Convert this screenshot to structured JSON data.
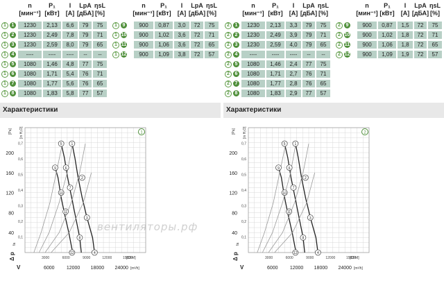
{
  "table_header": {
    "n": "n",
    "n_unit": "[мин⁻¹]",
    "p1": "P₁",
    "p1_unit": "[кВт]",
    "i": "I",
    "i_unit": "[A]",
    "lpa": "Lp",
    "lpa_sub": "A",
    "lpa_unit": "[дБА]",
    "eta": "η",
    "eta_sub": "sL",
    "eta_unit": "[%]"
  },
  "section_title": "Характеристики",
  "watermark": "вентиляторы.рф",
  "panels": [
    {
      "id": "1",
      "rows_left": [
        {
          "a": "1",
          "b": "1",
          "n": "1230",
          "p1": "2,13",
          "i": "6,6",
          "lpa": "79",
          "eta": "75"
        },
        {
          "a": "1",
          "b": "2",
          "n": "1230",
          "p1": "2,49",
          "i": "7,8",
          "lpa": "79",
          "eta": "71"
        },
        {
          "a": "1",
          "b": "3",
          "n": "1230",
          "p1": "2,59",
          "i": "8,0",
          "lpa": "79",
          "eta": "65"
        },
        {
          "a": "1",
          "b": "4",
          "n": "----",
          "p1": "----",
          "i": "----",
          "lpa": "--",
          "eta": "--"
        },
        {
          "a": "1",
          "b": "5",
          "n": "1080",
          "p1": "1,46",
          "i": "4,8",
          "lpa": "77",
          "eta": "75"
        },
        {
          "a": "1",
          "b": "6",
          "n": "1080",
          "p1": "1,71",
          "i": "5,4",
          "lpa": "76",
          "eta": "71"
        },
        {
          "a": "1",
          "b": "7",
          "n": "1080",
          "p1": "1,77",
          "i": "5,6",
          "lpa": "76",
          "eta": "65"
        },
        {
          "a": "1",
          "b": "8",
          "n": "1080",
          "p1": "1,83",
          "i": "5,8",
          "lpa": "77",
          "eta": "57"
        }
      ],
      "rows_right": [
        {
          "a": "1",
          "b": "9",
          "n": "900",
          "p1": "0,87",
          "i": "3,0",
          "lpa": "72",
          "eta": "75"
        },
        {
          "a": "1",
          "b": "10",
          "n": "900",
          "p1": "1,02",
          "i": "3,6",
          "lpa": "72",
          "eta": "71"
        },
        {
          "a": "1",
          "b": "11",
          "n": "900",
          "p1": "1,06",
          "i": "3,6",
          "lpa": "72",
          "eta": "65"
        },
        {
          "a": "1",
          "b": "12",
          "n": "900",
          "p1": "1,09",
          "i": "3,8",
          "lpa": "72",
          "eta": "57"
        }
      ]
    },
    {
      "id": "2",
      "rows_left": [
        {
          "a": "2",
          "b": "1",
          "n": "1230",
          "p1": "2,13",
          "i": "3,3",
          "lpa": "79",
          "eta": "75"
        },
        {
          "a": "2",
          "b": "2",
          "n": "1230",
          "p1": "2,49",
          "i": "3,9",
          "lpa": "79",
          "eta": "71"
        },
        {
          "a": "2",
          "b": "3",
          "n": "1230",
          "p1": "2,59",
          "i": "4,0",
          "lpa": "79",
          "eta": "65"
        },
        {
          "a": "2",
          "b": "4",
          "n": "----",
          "p1": "----",
          "i": "----",
          "lpa": "--",
          "eta": "--"
        },
        {
          "a": "2",
          "b": "5",
          "n": "1080",
          "p1": "1,46",
          "i": "2,4",
          "lpa": "77",
          "eta": "75"
        },
        {
          "a": "2",
          "b": "6",
          "n": "1080",
          "p1": "1,71",
          "i": "2,7",
          "lpa": "76",
          "eta": "71"
        },
        {
          "a": "2",
          "b": "7",
          "n": "1080",
          "p1": "1,77",
          "i": "2,8",
          "lpa": "76",
          "eta": "65"
        },
        {
          "a": "2",
          "b": "8",
          "n": "1080",
          "p1": "1,83",
          "i": "2,9",
          "lpa": "77",
          "eta": "57"
        }
      ],
      "rows_right": [
        {
          "a": "2",
          "b": "9",
          "n": "900",
          "p1": "0,87",
          "i": "1,5",
          "lpa": "72",
          "eta": "75"
        },
        {
          "a": "2",
          "b": "10",
          "n": "900",
          "p1": "1,02",
          "i": "1,8",
          "lpa": "72",
          "eta": "71"
        },
        {
          "a": "2",
          "b": "11",
          "n": "900",
          "p1": "1,06",
          "i": "1,8",
          "lpa": "72",
          "eta": "65"
        },
        {
          "a": "2",
          "b": "12",
          "n": "900",
          "p1": "1,09",
          "i": "1,9",
          "lpa": "72",
          "eta": "57"
        }
      ]
    }
  ],
  "chart_data": [
    {
      "type": "line",
      "badge": "1",
      "ylabel_unit": "[Pa]",
      "ylabel_alt_unit": "[in H₂O]",
      "ylabel_symbol": "Δ p",
      "ylabel_sub": "fa",
      "xlabel_symbol": "V",
      "xlabel_unit": "[m³/h]",
      "xlabel_alt_unit": "[CFM]",
      "x_ticks": [
        6000,
        12000,
        18000,
        24000
      ],
      "x_alt_ticks": [
        3000,
        6000,
        9000,
        12000,
        15000
      ],
      "y_ticks": [
        40,
        80,
        120,
        160,
        200
      ],
      "y_alt_ticks": [
        "0,1",
        "0,2",
        "0,3",
        "0,4",
        "0,5",
        "0,6",
        "0,7"
      ],
      "xlim": [
        0,
        30000
      ],
      "ylim": [
        0,
        250
      ],
      "series": [
        {
          "name": "",
          "points": [
            [
              11700,
              218
            ],
            [
              12400,
              190
            ],
            [
              13200,
              150
            ],
            [
              14200,
              110
            ],
            [
              15400,
              70
            ],
            [
              16800,
              30
            ],
            [
              17300,
              0
            ]
          ]
        },
        {
          "name": "",
          "points": [
            [
              9000,
              218
            ],
            [
              9800,
              190
            ],
            [
              10600,
              150
            ],
            [
              11600,
              110
            ],
            [
              12600,
              70
            ],
            [
              13600,
              30
            ],
            [
              14000,
              0
            ]
          ]
        },
        {
          "name": "",
          "points": [
            [
              7500,
              170
            ],
            [
              8200,
              150
            ],
            [
              9000,
              110
            ],
            [
              9900,
              75
            ],
            [
              10900,
              40
            ],
            [
              11600,
              10
            ],
            [
              11900,
              0
            ]
          ]
        },
        {
          "name": "",
          "points": [
            [
              2200,
              0
            ],
            [
              4000,
              40
            ],
            [
              6200,
              100
            ],
            [
              7800,
              160
            ],
            [
              9300,
              218
            ]
          ]
        },
        {
          "name": "",
          "points": [
            [
              3500,
              0
            ],
            [
              6000,
              40
            ],
            [
              8500,
              100
            ],
            [
              10500,
              160
            ],
            [
              11800,
              218
            ]
          ]
        },
        {
          "name": "",
          "points": [
            [
              5000,
              0
            ],
            [
              8500,
              40
            ],
            [
              11500,
              100
            ],
            [
              13600,
              160
            ],
            [
              15000,
              218
            ]
          ]
        },
        {
          "name": "",
          "points": [
            [
              6500,
              0
            ],
            [
              11000,
              40
            ],
            [
              14500,
              100
            ],
            [
              16500,
              160
            ]
          ]
        }
      ],
      "markers": [
        {
          "label": "5",
          "x": 9000,
          "y": 218
        },
        {
          "label": "6",
          "x": 10200,
          "y": 170
        },
        {
          "label": "7",
          "x": 11200,
          "y": 130
        },
        {
          "label": "8",
          "x": 13600,
          "y": 30
        },
        {
          "label": "9",
          "x": 7500,
          "y": 170
        },
        {
          "label": "10",
          "x": 9000,
          "y": 120
        },
        {
          "label": "11",
          "x": 10100,
          "y": 82
        },
        {
          "label": "12",
          "x": 11700,
          "y": 0
        },
        {
          "label": "1",
          "x": 11700,
          "y": 218
        },
        {
          "label": "2",
          "x": 14200,
          "y": 150
        },
        {
          "label": "3",
          "x": 15400,
          "y": 70
        },
        {
          "label": "4",
          "x": 17300,
          "y": 0
        }
      ]
    },
    {
      "type": "line",
      "badge": "2",
      "ylabel_unit": "[Pa]",
      "ylabel_alt_unit": "[in H₂O]",
      "ylabel_symbol": "Δ p",
      "ylabel_sub": "fa",
      "xlabel_symbol": "V",
      "xlabel_unit": "[m³/h]",
      "xlabel_alt_unit": "[CFM]",
      "x_ticks": [
        6000,
        12000,
        18000,
        24000
      ],
      "x_alt_ticks": [
        3000,
        6000,
        9000,
        12000,
        15000
      ],
      "y_ticks": [
        40,
        80,
        120,
        160,
        200
      ],
      "y_alt_ticks": [
        "0,1",
        "0,2",
        "0,3",
        "0,4",
        "0,5",
        "0,6",
        "0,7"
      ],
      "xlim": [
        0,
        30000
      ],
      "ylim": [
        0,
        250
      ],
      "series": [
        {
          "name": "",
          "points": [
            [
              11700,
              218
            ],
            [
              12400,
              190
            ],
            [
              13200,
              150
            ],
            [
              14200,
              110
            ],
            [
              15400,
              70
            ],
            [
              16800,
              30
            ],
            [
              17300,
              0
            ]
          ]
        },
        {
          "name": "",
          "points": [
            [
              9000,
              218
            ],
            [
              9800,
              190
            ],
            [
              10600,
              150
            ],
            [
              11600,
              110
            ],
            [
              12600,
              70
            ],
            [
              13600,
              30
            ],
            [
              14000,
              0
            ]
          ]
        },
        {
          "name": "",
          "points": [
            [
              7500,
              170
            ],
            [
              8200,
              150
            ],
            [
              9000,
              110
            ],
            [
              9900,
              75
            ],
            [
              10900,
              40
            ],
            [
              11600,
              10
            ],
            [
              11900,
              0
            ]
          ]
        },
        {
          "name": "",
          "points": [
            [
              2200,
              0
            ],
            [
              4000,
              40
            ],
            [
              6200,
              100
            ],
            [
              7800,
              160
            ],
            [
              9300,
              218
            ]
          ]
        },
        {
          "name": "",
          "points": [
            [
              3500,
              0
            ],
            [
              6000,
              40
            ],
            [
              8500,
              100
            ],
            [
              10500,
              160
            ],
            [
              11800,
              218
            ]
          ]
        },
        {
          "name": "",
          "points": [
            [
              5000,
              0
            ],
            [
              8500,
              40
            ],
            [
              11500,
              100
            ],
            [
              13600,
              160
            ],
            [
              15000,
              218
            ]
          ]
        },
        {
          "name": "",
          "points": [
            [
              6500,
              0
            ],
            [
              11000,
              40
            ],
            [
              14500,
              100
            ],
            [
              16500,
              160
            ]
          ]
        }
      ],
      "markers": [
        {
          "label": "5",
          "x": 9000,
          "y": 218
        },
        {
          "label": "6",
          "x": 10200,
          "y": 170
        },
        {
          "label": "7",
          "x": 11200,
          "y": 130
        },
        {
          "label": "8",
          "x": 13600,
          "y": 30
        },
        {
          "label": "9",
          "x": 7500,
          "y": 170
        },
        {
          "label": "10",
          "x": 9000,
          "y": 120
        },
        {
          "label": "11",
          "x": 10100,
          "y": 82
        },
        {
          "label": "12",
          "x": 11700,
          "y": 0
        },
        {
          "label": "1",
          "x": 11700,
          "y": 218
        },
        {
          "label": "2",
          "x": 14200,
          "y": 150
        },
        {
          "label": "3",
          "x": 15400,
          "y": 70
        },
        {
          "label": "4",
          "x": 17300,
          "y": 0
        }
      ]
    }
  ],
  "colors": {
    "cell_bg": "#b8d0c6",
    "badge_green": "#4f8f3a",
    "curve_dark": "#222222",
    "curve_light": "#9a9a9a",
    "grid": "#d8d8d8",
    "section_bg": "#e8e8e8"
  }
}
